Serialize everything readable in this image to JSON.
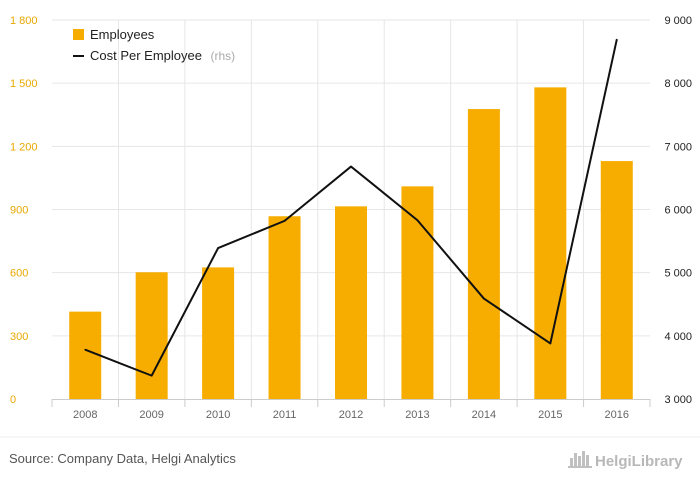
{
  "chart_data": {
    "type": "bar",
    "categories": [
      "2008",
      "2009",
      "2010",
      "2011",
      "2012",
      "2013",
      "2014",
      "2015",
      "2016"
    ],
    "series": [
      {
        "name": "Employees",
        "type": "bar",
        "axis": "left",
        "values": [
          415,
          602,
          625,
          868,
          915,
          1010,
          1377,
          1480,
          1130
        ]
      },
      {
        "name": "Cost Per Employee",
        "name_note": "(rhs)",
        "type": "line",
        "axis": "right",
        "values": [
          3780,
          3370,
          5390,
          5820,
          6680,
          5830,
          4590,
          3880,
          8690
        ]
      }
    ],
    "y_left": {
      "min": 0,
      "max": 1800,
      "ticks": [
        0,
        300,
        600,
        900,
        1200,
        1500,
        1800
      ],
      "tick_labels": [
        "0",
        "300",
        "600",
        "900",
        "1 200",
        "1 500",
        "1 800"
      ]
    },
    "y_right": {
      "min": 3000,
      "max": 9000,
      "ticks": [
        3000,
        4000,
        5000,
        6000,
        7000,
        8000,
        9000
      ],
      "tick_labels": [
        "3 000",
        "4 000",
        "5 000",
        "6 000",
        "7 000",
        "8 000",
        "9 000"
      ]
    },
    "grid": true,
    "legend_position": "top-left",
    "colors": {
      "bar": "#f7ad00",
      "line": "#111111",
      "left_ticks": "#e8a800",
      "grid": "#e6e6e6"
    }
  },
  "source": "Source: Company Data, Helgi Analytics",
  "logo": {
    "text": "HelgiLibrary",
    "icon": "city-skyline-icon"
  }
}
